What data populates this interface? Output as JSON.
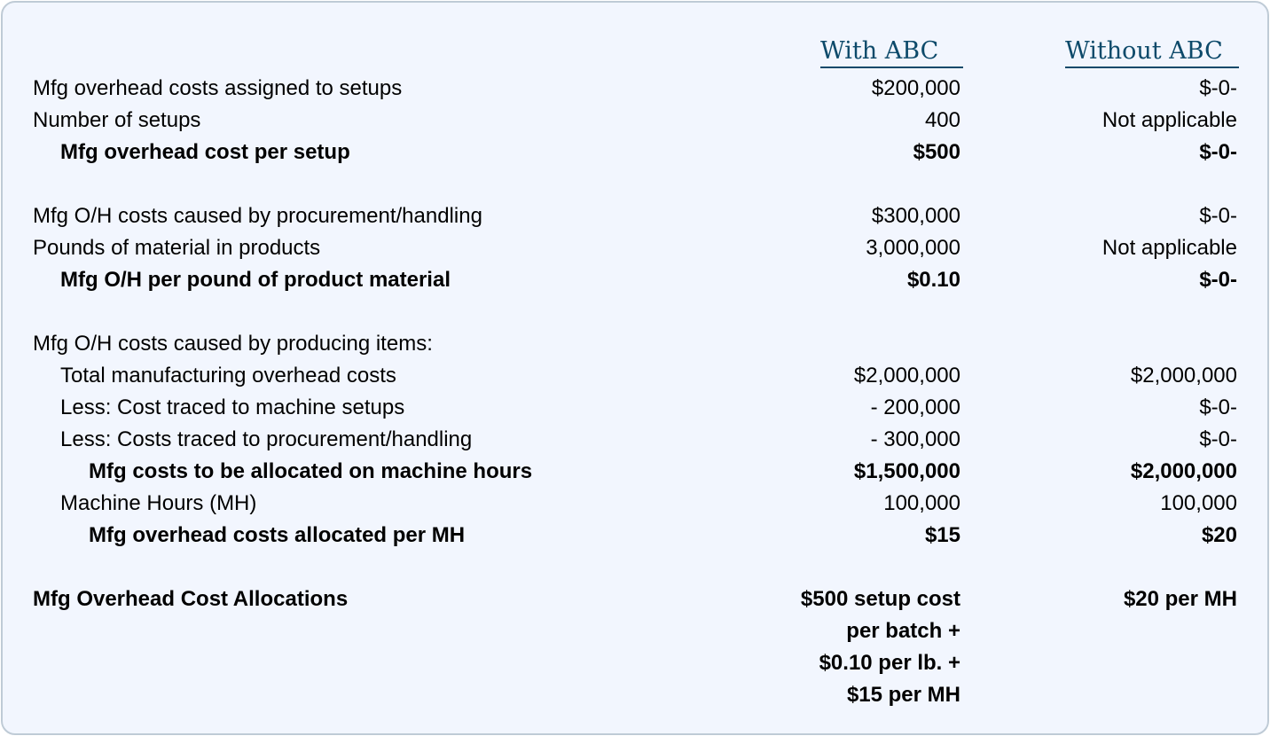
{
  "headers": {
    "with_abc": "With ABC",
    "without_abc": "Without ABC"
  },
  "rows": [
    {
      "label": "Mfg overhead costs assigned to setups",
      "with": "$200,000",
      "without": "$-0-"
    },
    {
      "label": "Number of setups",
      "with": "400",
      "without": "Not applicable"
    },
    {
      "label": "Mfg overhead cost per setup",
      "with": "$500",
      "without": "$-0-"
    },
    {
      "label": "Mfg O/H costs caused by procurement/handling",
      "with": "$300,000",
      "without": "$-0-"
    },
    {
      "label": "Pounds of material in products",
      "with": "3,000,000",
      "without": "Not applicable"
    },
    {
      "label": "Mfg O/H per pound of product material",
      "with": "$0.10",
      "without": "$-0-"
    },
    {
      "label": "Mfg O/H costs caused by producing items:",
      "with": "",
      "without": ""
    },
    {
      "label": "Total manufacturing overhead costs",
      "with": "$2,000,000",
      "without": "$2,000,000"
    },
    {
      "label": "Less: Cost traced to machine setups",
      "with": "- 200,000",
      "without": "$-0-"
    },
    {
      "label": "Less: Costs traced to procurement/handling",
      "with": "- 300,000",
      "without": "$-0-"
    },
    {
      "label": "Mfg costs to be allocated on machine hours",
      "with": "$1,500,000",
      "without": "$2,000,000"
    },
    {
      "label": "Machine Hours (MH)",
      "with": "100,000",
      "without": "100,000"
    },
    {
      "label": "Mfg overhead costs allocated per MH",
      "with": "$15",
      "without": "$20"
    }
  ],
  "allocations": {
    "label": "Mfg Overhead Cost Allocations",
    "with_lines": [
      "$500 setup cost",
      "per batch +",
      "$0.10 per lb. +",
      "$15 per MH"
    ],
    "without": "$20 per MH"
  }
}
